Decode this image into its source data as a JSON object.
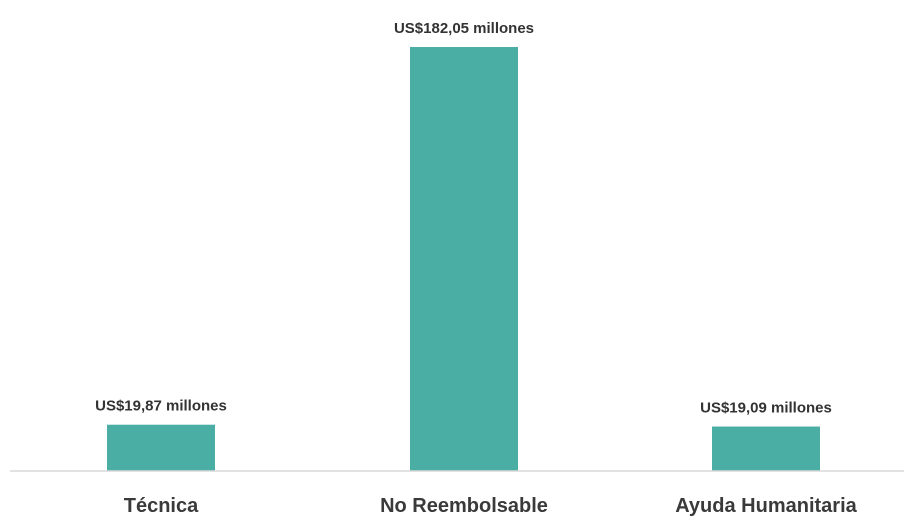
{
  "chart_data": {
    "type": "bar",
    "categories": [
      "Técnica",
      "No Reembolsable",
      "Ayuda Humanitaria"
    ],
    "values": [
      19.87,
      182.05,
      19.09
    ],
    "data_labels": [
      "US$19,87 millones",
      "US$182,05 millones",
      "US$19,09 millones"
    ],
    "title": "",
    "xlabel": "",
    "ylabel": "",
    "ylim": [
      0,
      182.05
    ],
    "grid": false,
    "legend": "none",
    "colors": {
      "bar": "#4aaea4",
      "axis": "#d9d9d9",
      "text": "#333333"
    }
  }
}
